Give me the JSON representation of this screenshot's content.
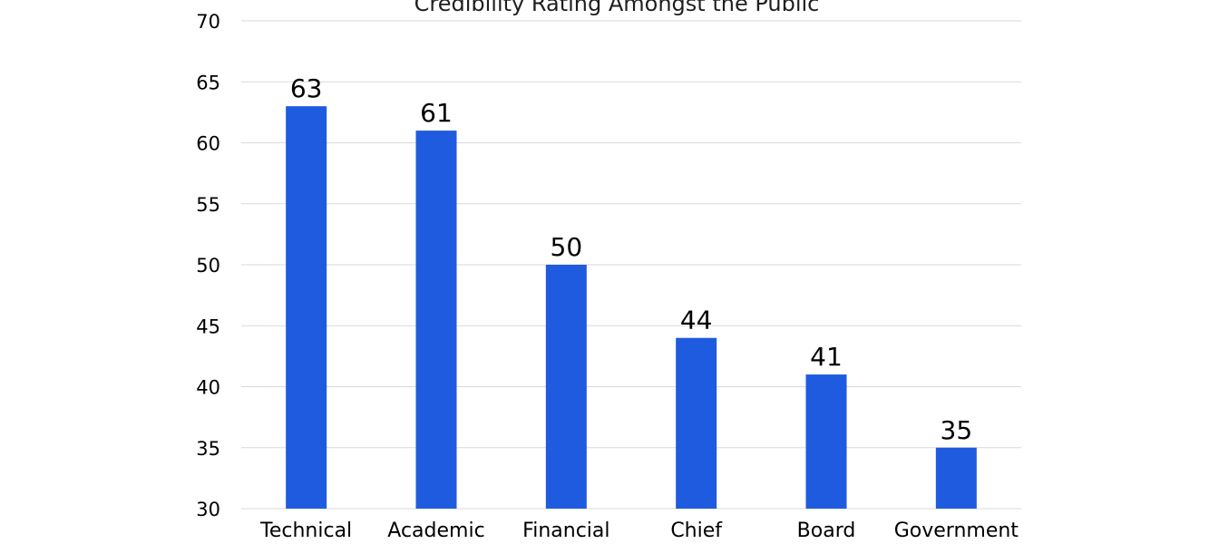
{
  "chart_data": {
    "type": "bar",
    "title": "Credibility Rating Amongst the Public",
    "xlabel": "",
    "ylabel": "",
    "categories": [
      "Technical",
      "Academic",
      "Financial",
      "Chief",
      "Board",
      "Government"
    ],
    "values": [
      63,
      61,
      50,
      44,
      41,
      35
    ],
    "ylim": [
      30,
      70
    ],
    "yticks": [
      30,
      35,
      40,
      45,
      50,
      55,
      60,
      65,
      70
    ],
    "grid": true,
    "bar_color": "#1f5bdf",
    "data_labels": true
  }
}
